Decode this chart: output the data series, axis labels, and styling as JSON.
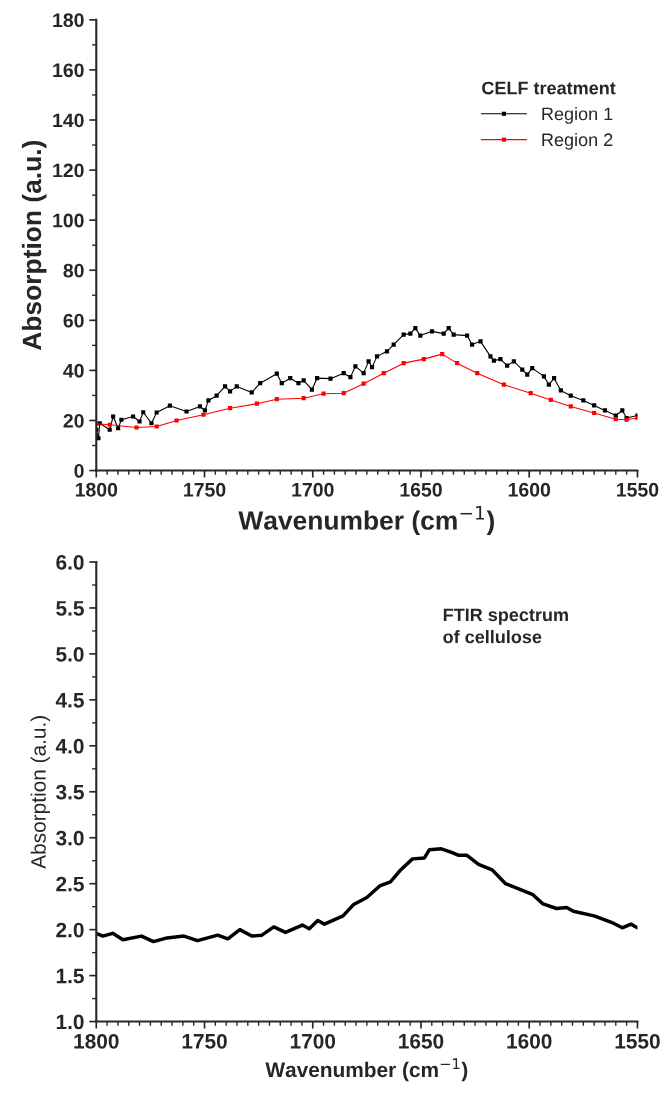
{
  "chart_data": [
    {
      "type": "line",
      "xlabel": "Wavenumber (cm$^{−1}$)",
      "ylabel": "Absorption (a.u.)",
      "xlim": [
        1800,
        1550
      ],
      "xticks": [
        1800,
        1750,
        1700,
        1650,
        1600,
        1550
      ],
      "ylim": [
        0,
        180
      ],
      "yticks": [
        0,
        20,
        40,
        60,
        80,
        100,
        120,
        140,
        160,
        180
      ],
      "legend": "top right",
      "legend_title": "CELF treatment",
      "marker": "square",
      "series": [
        {
          "name": "Region 1",
          "color": "#000000",
          "x": [
            1800,
            1799,
            1798.4,
            1793.8,
            1792.2,
            1789.9,
            1788.4,
            1783,
            1780,
            1778.3,
            1774.5,
            1772.1,
            1766,
            1758.3,
            1752.1,
            1749.8,
            1748.2,
            1744.4,
            1740.5,
            1738.2,
            1735.1,
            1728.2,
            1724.3,
            1716.6,
            1714.3,
            1710.4,
            1706.6,
            1704.2,
            1700.4,
            1698,
            1691.8,
            1685.7,
            1682.6,
            1680.3,
            1676.5,
            1674.2,
            1672.6,
            1670.3,
            1665.7,
            1662.6,
            1658,
            1654.9,
            1652.6,
            1650.3,
            1644.9,
            1639.5,
            1637.2,
            1634.9,
            1628.7,
            1626.4,
            1622.5,
            1617.9,
            1616.3,
            1613.3,
            1610.2,
            1607.1,
            1603.2,
            1600.9,
            1598.6,
            1593.2,
            1590.9,
            1588.5,
            1585.4,
            1580.8,
            1575,
            1570,
            1565,
            1560,
            1557,
            1555,
            1550
          ],
          "values": [
            16.3,
            12.9,
            18.9,
            16.3,
            21.6,
            16.9,
            20.3,
            21.6,
            19.6,
            23.3,
            18.9,
            23.2,
            25.9,
            23.6,
            25.6,
            24,
            28,
            29.9,
            33.6,
            31.6,
            33.6,
            31.2,
            34.9,
            38.7,
            34.9,
            36.9,
            34.9,
            36,
            32.3,
            36.9,
            36.7,
            38.9,
            37.3,
            41.6,
            38.9,
            43.6,
            41.3,
            45.6,
            47.6,
            50.3,
            54.3,
            54.7,
            56.9,
            53.9,
            55.6,
            54.7,
            56.9,
            54.3,
            53.9,
            50.3,
            51.6,
            45.6,
            43.9,
            44.5,
            41.9,
            43.6,
            40.3,
            38.3,
            40.9,
            37.6,
            34.3,
            36.9,
            32,
            29.9,
            28,
            26,
            24,
            22,
            24,
            21,
            22
          ]
        },
        {
          "name": "Region 2",
          "color": "#ff0000",
          "x": [
            1800,
            1793.8,
            1781.4,
            1772.1,
            1762.9,
            1750.5,
            1738.2,
            1725.8,
            1716.6,
            1704.2,
            1695,
            1685.7,
            1676.5,
            1667.2,
            1658,
            1648.7,
            1640.2,
            1633.3,
            1624,
            1611.7,
            1599.3,
            1590,
            1580.8,
            1570,
            1560,
            1555,
            1550
          ],
          "values": [
            18.7,
            18.3,
            17.2,
            17.6,
            20,
            22.3,
            24.9,
            26.7,
            28.5,
            28.9,
            30.7,
            30.9,
            34.7,
            38.9,
            42.9,
            44.5,
            46.5,
            42.9,
            38.9,
            34.3,
            30.9,
            28.2,
            25.6,
            23,
            20.5,
            20.3,
            21
          ]
        }
      ]
    },
    {
      "type": "line",
      "xlabel": "Wavenumber (cm$^{−1}$)",
      "ylabel": "Absorption (a.u.)",
      "xlim": [
        1800,
        1550
      ],
      "xticks": [
        1800,
        1750,
        1700,
        1650,
        1600,
        1550
      ],
      "ylim": [
        1.0,
        6.0
      ],
      "yticks": [
        {
          "value": 1.0,
          "label": "1.0"
        },
        1.5,
        {
          "value": 2.0,
          "label": "2.0"
        },
        2.5,
        {
          "value": 3.0,
          "label": "3.0"
        },
        3.5,
        {
          "value": 4.0,
          "label": "4.0"
        },
        4.5,
        {
          "value": 5.0,
          "label": "5.0"
        },
        5.5,
        {
          "value": 6.0,
          "label": "6.0"
        }
      ],
      "annotations": [
        "FTIR spectrum\nof cellulose"
      ],
      "series": [
        {
          "color": "#000000",
          "x": [
            1800,
            1797,
            1792.4,
            1787.7,
            1779.1,
            1773.6,
            1767.3,
            1759.5,
            1753.2,
            1743.9,
            1739.2,
            1733.7,
            1728.2,
            1723.5,
            1718,
            1712.6,
            1704.8,
            1701.6,
            1697.7,
            1694.6,
            1686,
            1681.3,
            1675,
            1668.8,
            1664.1,
            1659.4,
            1653.9,
            1648.4,
            1646.1,
            1640.6,
            1635.9,
            1632.8,
            1628.9,
            1623.4,
            1617.1,
            1610.9,
            1604.6,
            1598.3,
            1593.6,
            1587.4,
            1582.7,
            1579.6,
            1570,
            1562,
            1557,
            1553,
            1550
          ],
          "values": [
            1.96,
            1.93,
            1.96,
            1.89,
            1.93,
            1.87,
            1.91,
            1.93,
            1.88,
            1.94,
            1.9,
            2.0,
            1.93,
            1.94,
            2.03,
            1.97,
            2.05,
            2.01,
            2.1,
            2.06,
            2.15,
            2.27,
            2.35,
            2.48,
            2.52,
            2.65,
            2.77,
            2.78,
            2.87,
            2.88,
            2.84,
            2.81,
            2.81,
            2.71,
            2.65,
            2.5,
            2.44,
            2.38,
            2.28,
            2.23,
            2.24,
            2.2,
            2.15,
            2.08,
            2.02,
            2.06,
            2.02
          ]
        }
      ]
    }
  ]
}
